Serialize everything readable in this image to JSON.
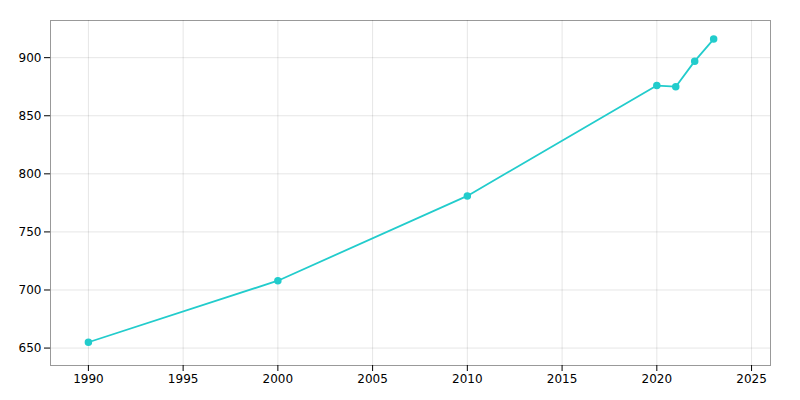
{
  "chart_data": {
    "type": "line",
    "x": [
      1990,
      2000,
      2010,
      2020,
      2021,
      2022,
      2023
    ],
    "values": [
      655,
      708,
      781,
      876,
      875,
      897,
      916
    ],
    "color": "#22cccc",
    "marker": "circle",
    "xlim": [
      1988,
      2026
    ],
    "ylim": [
      635,
      932
    ],
    "xticks": [
      1990,
      1995,
      2000,
      2005,
      2010,
      2015,
      2020,
      2025
    ],
    "yticks": [
      650,
      700,
      750,
      800,
      850,
      900
    ],
    "grid": true
  }
}
